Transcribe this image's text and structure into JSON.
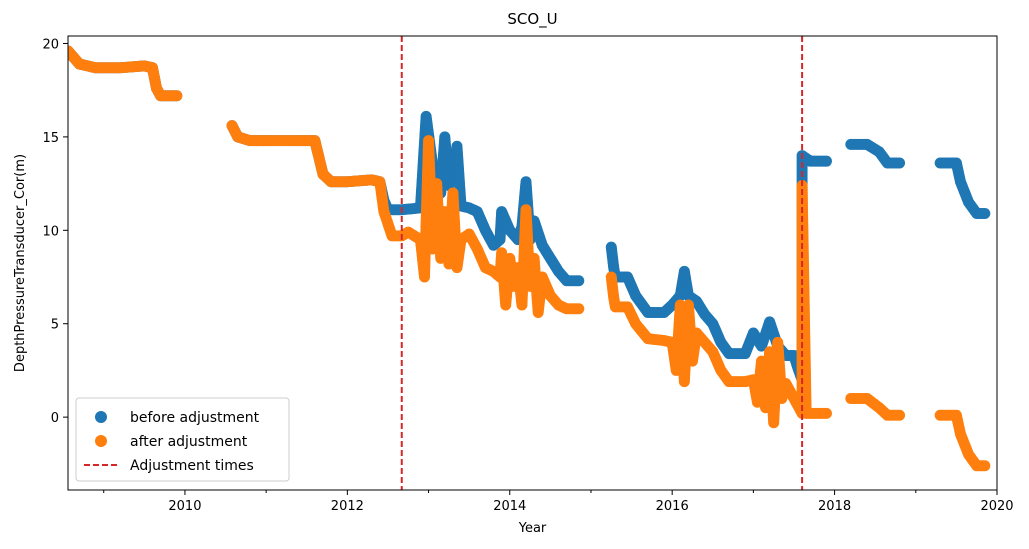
{
  "chart_data": {
    "type": "scatter",
    "title": "SCO_U",
    "xlabel": "Year",
    "ylabel": "DepthPressureTransducer_Cor(m)",
    "xlim": [
      2008.56,
      2020.0
    ],
    "ylim": [
      -3.9,
      20.4
    ],
    "xticks": [
      2010,
      2012,
      2014,
      2016,
      2018,
      2020
    ],
    "xtick_labels": [
      "2010",
      "2012",
      "2014",
      "2016",
      "2018",
      "2020"
    ],
    "yticks": [
      0,
      5,
      10,
      15,
      20
    ],
    "ytick_labels": [
      "0",
      "5",
      "10",
      "15",
      "20"
    ],
    "grid": false,
    "legend_position": "lower-left",
    "series": [
      {
        "name": "before adjustment",
        "color": "#1f77b4",
        "marker": "circle",
        "segments": [
          [
            [
              2008.56,
              19.6
            ],
            [
              2008.7,
              18.9
            ],
            [
              2008.9,
              18.7
            ],
            [
              2009.2,
              18.7
            ],
            [
              2009.5,
              18.8
            ],
            [
              2009.6,
              18.7
            ],
            [
              2009.65,
              17.6
            ],
            [
              2009.7,
              17.2
            ],
            [
              2009.9,
              17.2
            ]
          ],
          [
            [
              2010.58,
              15.6
            ],
            [
              2010.65,
              15.0
            ],
            [
              2010.8,
              14.8
            ],
            [
              2011.0,
              14.8
            ],
            [
              2011.4,
              14.8
            ],
            [
              2011.6,
              14.8
            ],
            [
              2011.65,
              13.9
            ],
            [
              2011.7,
              13.0
            ],
            [
              2011.8,
              12.6
            ],
            [
              2012.0,
              12.6
            ],
            [
              2012.3,
              12.7
            ],
            [
              2012.4,
              12.6
            ],
            [
              2012.45,
              11.6
            ],
            [
              2012.5,
              11.1
            ],
            [
              2012.67,
              11.1
            ],
            [
              2012.9,
              11.2
            ],
            [
              2012.97,
              16.1
            ],
            [
              2013.05,
              13.5
            ],
            [
              2013.15,
              12.0
            ],
            [
              2013.2,
              15.0
            ],
            [
              2013.25,
              12.4
            ],
            [
              2013.3,
              13.0
            ],
            [
              2013.35,
              14.5
            ],
            [
              2013.4,
              11.3
            ],
            [
              2013.5,
              11.2
            ],
            [
              2013.6,
              11.0
            ],
            [
              2013.7,
              10.0
            ],
            [
              2013.8,
              9.2
            ],
            [
              2013.88,
              9.5
            ],
            [
              2013.9,
              11.0
            ],
            [
              2014.0,
              10.0
            ],
            [
              2014.1,
              9.5
            ],
            [
              2014.15,
              10.2
            ],
            [
              2014.2,
              12.6
            ],
            [
              2014.25,
              9.5
            ],
            [
              2014.3,
              10.5
            ],
            [
              2014.4,
              9.2
            ],
            [
              2014.5,
              8.5
            ],
            [
              2014.6,
              7.8
            ],
            [
              2014.7,
              7.3
            ],
            [
              2014.85,
              7.3
            ]
          ],
          [
            [
              2015.25,
              9.1
            ],
            [
              2015.28,
              8.0
            ],
            [
              2015.3,
              7.5
            ],
            [
              2015.45,
              7.5
            ],
            [
              2015.55,
              6.5
            ],
            [
              2015.7,
              5.6
            ],
            [
              2015.9,
              5.6
            ],
            [
              2016.0,
              6.0
            ],
            [
              2016.1,
              6.5
            ],
            [
              2016.15,
              7.8
            ],
            [
              2016.2,
              6.5
            ],
            [
              2016.3,
              6.2
            ],
            [
              2016.4,
              5.5
            ],
            [
              2016.5,
              5.0
            ],
            [
              2016.6,
              4.0
            ],
            [
              2016.7,
              3.4
            ],
            [
              2016.9,
              3.4
            ],
            [
              2017.0,
              4.5
            ],
            [
              2017.1,
              3.8
            ],
            [
              2017.2,
              5.1
            ],
            [
              2017.3,
              3.8
            ],
            [
              2017.4,
              3.3
            ],
            [
              2017.5,
              3.3
            ],
            [
              2017.55,
              2.6
            ],
            [
              2017.6,
              2.0
            ],
            [
              2017.6,
              14.0
            ],
            [
              2017.7,
              13.7
            ],
            [
              2017.9,
              13.7
            ]
          ],
          [
            [
              2018.2,
              14.6
            ],
            [
              2018.4,
              14.6
            ],
            [
              2018.55,
              14.2
            ],
            [
              2018.65,
              13.6
            ],
            [
              2018.8,
              13.6
            ]
          ],
          [
            [
              2019.3,
              13.6
            ],
            [
              2019.5,
              13.6
            ],
            [
              2019.55,
              12.6
            ],
            [
              2019.65,
              11.5
            ],
            [
              2019.75,
              10.9
            ],
            [
              2019.85,
              10.9
            ]
          ]
        ]
      },
      {
        "name": "after adjustment",
        "color": "#ff7f0e",
        "marker": "circle",
        "segments": [
          [
            [
              2008.56,
              19.6
            ],
            [
              2008.7,
              18.9
            ],
            [
              2008.9,
              18.7
            ],
            [
              2009.2,
              18.7
            ],
            [
              2009.5,
              18.8
            ],
            [
              2009.6,
              18.7
            ],
            [
              2009.65,
              17.6
            ],
            [
              2009.7,
              17.2
            ],
            [
              2009.9,
              17.2
            ]
          ],
          [
            [
              2010.58,
              15.6
            ],
            [
              2010.65,
              15.0
            ],
            [
              2010.8,
              14.8
            ],
            [
              2011.0,
              14.8
            ],
            [
              2011.4,
              14.8
            ],
            [
              2011.6,
              14.8
            ],
            [
              2011.65,
              13.9
            ],
            [
              2011.7,
              13.0
            ],
            [
              2011.8,
              12.6
            ],
            [
              2012.0,
              12.6
            ],
            [
              2012.3,
              12.7
            ],
            [
              2012.4,
              12.6
            ],
            [
              2012.45,
              11.0
            ],
            [
              2012.55,
              9.7
            ],
            [
              2012.67,
              9.7
            ],
            [
              2012.75,
              9.9
            ],
            [
              2012.9,
              9.5
            ],
            [
              2012.95,
              7.5
            ],
            [
              2013.0,
              14.8
            ],
            [
              2013.05,
              9.0
            ],
            [
              2013.1,
              12.5
            ],
            [
              2013.15,
              8.5
            ],
            [
              2013.2,
              11.0
            ],
            [
              2013.25,
              8.2
            ],
            [
              2013.3,
              12.0
            ],
            [
              2013.35,
              8.0
            ],
            [
              2013.4,
              9.5
            ],
            [
              2013.5,
              9.8
            ],
            [
              2013.6,
              9.0
            ],
            [
              2013.7,
              8.0
            ],
            [
              2013.8,
              7.8
            ],
            [
              2013.88,
              7.5
            ],
            [
              2013.9,
              8.8
            ],
            [
              2013.95,
              6.0
            ],
            [
              2014.0,
              8.5
            ],
            [
              2014.05,
              7.0
            ],
            [
              2014.1,
              8.0
            ],
            [
              2014.15,
              6.0
            ],
            [
              2014.2,
              11.1
            ],
            [
              2014.25,
              7.0
            ],
            [
              2014.3,
              8.5
            ],
            [
              2014.35,
              5.6
            ],
            [
              2014.4,
              7.5
            ],
            [
              2014.5,
              6.5
            ],
            [
              2014.6,
              6.0
            ],
            [
              2014.7,
              5.8
            ],
            [
              2014.85,
              5.8
            ]
          ],
          [
            [
              2015.25,
              7.5
            ],
            [
              2015.28,
              6.4
            ],
            [
              2015.3,
              5.9
            ],
            [
              2015.45,
              5.9
            ],
            [
              2015.55,
              5.0
            ],
            [
              2015.7,
              4.2
            ],
            [
              2015.9,
              4.1
            ],
            [
              2016.0,
              4.0
            ],
            [
              2016.05,
              2.5
            ],
            [
              2016.1,
              6.0
            ],
            [
              2016.15,
              1.9
            ],
            [
              2016.2,
              6.0
            ],
            [
              2016.25,
              3.0
            ],
            [
              2016.3,
              4.5
            ],
            [
              2016.4,
              4.0
            ],
            [
              2016.5,
              3.5
            ],
            [
              2016.6,
              2.5
            ],
            [
              2016.7,
              1.9
            ],
            [
              2016.9,
              1.9
            ],
            [
              2017.0,
              2.0
            ],
            [
              2017.05,
              0.8
            ],
            [
              2017.1,
              3.0
            ],
            [
              2017.15,
              0.5
            ],
            [
              2017.2,
              3.5
            ],
            [
              2017.25,
              -0.3
            ],
            [
              2017.3,
              4.0
            ],
            [
              2017.35,
              1.0
            ],
            [
              2017.4,
              1.8
            ],
            [
              2017.5,
              1.0
            ],
            [
              2017.55,
              0.6
            ],
            [
              2017.6,
              0.2
            ],
            [
              2017.6,
              12.4
            ],
            [
              2017.65,
              0.2
            ],
            [
              2017.9,
              0.2
            ]
          ],
          [
            [
              2018.2,
              1.0
            ],
            [
              2018.4,
              1.0
            ],
            [
              2018.55,
              0.5
            ],
            [
              2018.65,
              0.1
            ],
            [
              2018.8,
              0.1
            ]
          ],
          [
            [
              2019.3,
              0.1
            ],
            [
              2019.5,
              0.1
            ],
            [
              2019.55,
              -0.9
            ],
            [
              2019.65,
              -2.0
            ],
            [
              2019.75,
              -2.6
            ],
            [
              2019.85,
              -2.6
            ]
          ]
        ]
      }
    ],
    "adjustment_lines": {
      "name": "Adjustment times",
      "color": "#d62728",
      "style": "dashed",
      "x": [
        2012.67,
        2017.6
      ]
    }
  }
}
